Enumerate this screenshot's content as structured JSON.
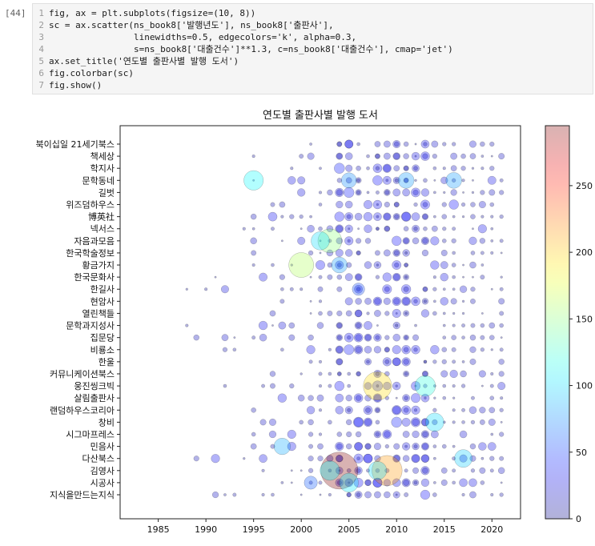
{
  "cell": {
    "prompt": "[44]",
    "code_lines": [
      "fig, ax = plt.subplots(figsize=(10, 8))",
      "sc = ax.scatter(ns_book8['발행년도'], ns_book8['출판사'],",
      "                linewidths=0.5, edgecolors='k', alpha=0.3,",
      "                s=ns_book8['대출건수']**1.3, c=ns_book8['대출건수'], cmap='jet')",
      "ax.set_title('연도별 출판사별 발행 도서')",
      "fig.colorbar(sc)",
      "fig.show()"
    ]
  },
  "chart_data": {
    "type": "scatter",
    "title": "연도별 출판사별 발행 도서",
    "xlabel": "",
    "ylabel": "",
    "xlim": [
      1981,
      2023
    ],
    "x_ticks": [
      1985,
      1990,
      1995,
      2000,
      2005,
      2010,
      2015,
      2020
    ],
    "publishers": [
      "북이십일 21세기북스",
      "책세상",
      "학지사",
      "문학동네",
      "길벗",
      "위즈덤하우스",
      "博英社",
      "넥서스",
      "자음과모음",
      "한국학술정보",
      "황금가지",
      "한국문화사",
      "한길사",
      "현암사",
      "열린책들",
      "문학과지성사",
      "집문당",
      "비룡소",
      "한울",
      "커뮤니케이션북스",
      "웅진씽크빅",
      "살림출판사",
      "랜덤하우스코리아",
      "창비",
      "시그마프레스",
      "민음사",
      "다산북스",
      "김영사",
      "시공사",
      "지식을만드는지식"
    ],
    "colorbar": {
      "min": 0,
      "max": 295,
      "ticks": [
        0,
        50,
        100,
        150,
        200,
        250
      ],
      "cmap": "jet"
    },
    "highlight_points": [
      {
        "publisher": "김영사",
        "year": 2004,
        "loans": 295
      },
      {
        "publisher": "문학동네",
        "year": 1995,
        "loans": 110
      },
      {
        "publisher": "황금가지",
        "year": 2000,
        "loans": 160
      },
      {
        "publisher": "자음과모음",
        "year": 2003,
        "loans": 150
      },
      {
        "publisher": "자음과모음",
        "year": 2002,
        "loans": 100
      },
      {
        "publisher": "웅진씽크빅",
        "year": 2008,
        "loans": 195
      },
      {
        "publisher": "웅진씽크빅",
        "year": 2013,
        "loans": 120
      },
      {
        "publisher": "김영사",
        "year": 2009,
        "loans": 215
      },
      {
        "publisher": "김영사",
        "year": 2003,
        "loans": 110
      },
      {
        "publisher": "김영사",
        "year": 2008,
        "loans": 100
      },
      {
        "publisher": "시공사",
        "year": 2005,
        "loans": 105
      },
      {
        "publisher": "창비",
        "year": 2014,
        "loans": 100
      },
      {
        "publisher": "다산북스",
        "year": 2017,
        "loans": 95
      },
      {
        "publisher": "민음사",
        "year": 1998,
        "loans": 85
      },
      {
        "publisher": "문학동네",
        "year": 2016,
        "loans": 80
      },
      {
        "publisher": "황금가지",
        "year": 2004,
        "loans": 80
      },
      {
        "publisher": "문학동네",
        "year": 2005,
        "loans": 75
      },
      {
        "publisher": "문학동네",
        "year": 2011,
        "loans": 80
      },
      {
        "publisher": "시공사",
        "year": 2001,
        "loans": 60
      },
      {
        "publisher": "한길사",
        "year": 2006,
        "loans": 55
      }
    ]
  }
}
